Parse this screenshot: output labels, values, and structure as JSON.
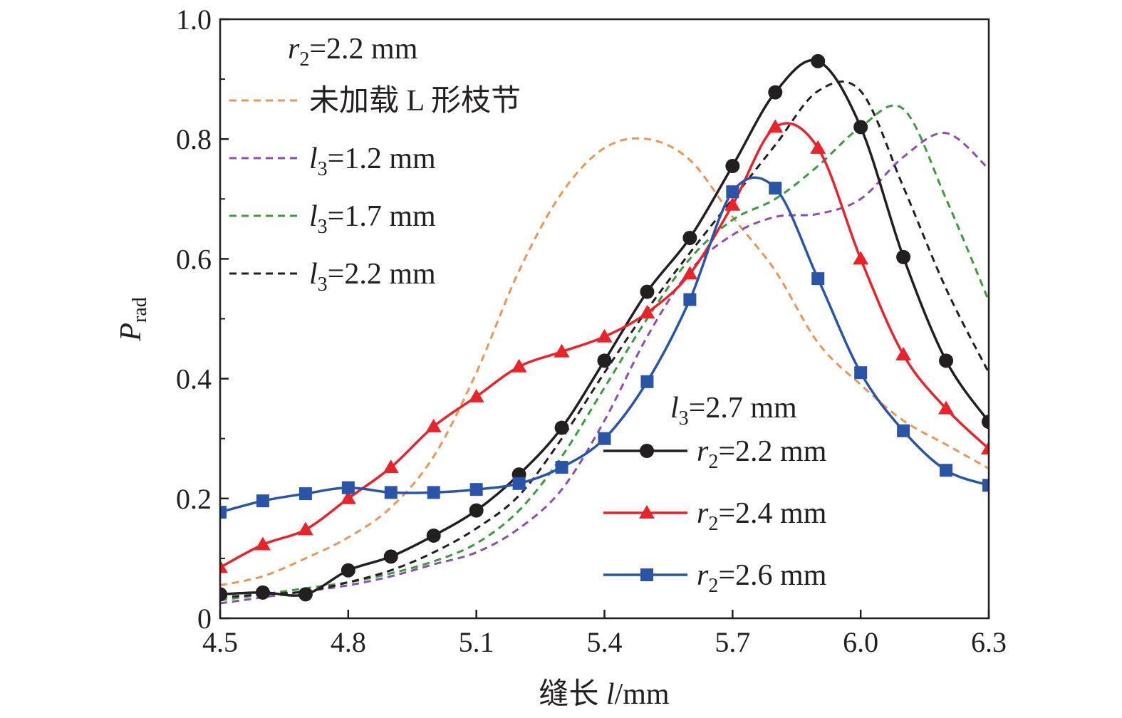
{
  "chart_data": {
    "type": "line",
    "xlabel": "缝长 l/mm",
    "ylabel": "Prad",
    "xlim": [
      4.5,
      6.3
    ],
    "ylim": [
      0,
      1.0
    ],
    "xticks": [
      "4.5",
      "4.8",
      "5.1",
      "5.4",
      "5.7",
      "6.0",
      "6.3"
    ],
    "yticks": [
      "0",
      "0.2",
      "0.4",
      "0.6",
      "0.8",
      "1.0"
    ],
    "grid": false,
    "legends": [
      {
        "heading": "r2=2.2 mm",
        "placement": "top-left",
        "entries": [
          {
            "label": "未加载 L 形枝节",
            "series": 0
          },
          {
            "label": "l3=1.2 mm",
            "series": 1
          },
          {
            "label": "l3=1.7 mm",
            "series": 2
          },
          {
            "label": "l3=2.2 mm",
            "series": 3
          }
        ]
      },
      {
        "heading": "l3=2.7 mm",
        "placement": "bottom-right",
        "entries": [
          {
            "label": "r2=2.2 mm",
            "series": 4
          },
          {
            "label": "r2=2.4 mm",
            "series": 5
          },
          {
            "label": "r2=2.6 mm",
            "series": 6
          }
        ]
      }
    ],
    "series": [
      {
        "name": "未加载 L 形枝节",
        "color": "#e8965a",
        "style": "dashed",
        "marker": "none",
        "x": [
          4.5,
          4.6,
          4.7,
          4.8,
          4.9,
          5.0,
          5.1,
          5.2,
          5.3,
          5.4,
          5.5,
          5.6,
          5.7,
          5.8,
          5.9,
          6.0,
          6.1,
          6.2,
          6.3
        ],
        "y": [
          0.055,
          0.07,
          0.1,
          0.135,
          0.185,
          0.27,
          0.41,
          0.58,
          0.71,
          0.785,
          0.8,
          0.765,
          0.67,
          0.58,
          0.46,
          0.39,
          0.33,
          0.29,
          0.25
        ]
      },
      {
        "name": "l3=1.2 mm",
        "color": "#8a4fb0",
        "style": "dashed",
        "marker": "none",
        "x": [
          4.5,
          4.6,
          4.7,
          4.8,
          4.9,
          5.0,
          5.1,
          5.2,
          5.3,
          5.4,
          5.5,
          5.6,
          5.7,
          5.8,
          5.9,
          6.0,
          6.1,
          6.2,
          6.3
        ],
        "y": [
          0.025,
          0.035,
          0.045,
          0.055,
          0.07,
          0.09,
          0.11,
          0.15,
          0.215,
          0.33,
          0.47,
          0.58,
          0.64,
          0.67,
          0.675,
          0.7,
          0.77,
          0.81,
          0.75
        ]
      },
      {
        "name": "l3=1.7 mm",
        "color": "#3f9a3f",
        "style": "dashed",
        "marker": "none",
        "x": [
          4.5,
          4.6,
          4.7,
          4.8,
          4.9,
          5.0,
          5.1,
          5.2,
          5.3,
          5.4,
          5.5,
          5.6,
          5.7,
          5.8,
          5.9,
          6.0,
          6.1,
          6.2,
          6.3
        ],
        "y": [
          0.03,
          0.04,
          0.05,
          0.06,
          0.075,
          0.095,
          0.125,
          0.18,
          0.27,
          0.385,
          0.5,
          0.6,
          0.665,
          0.7,
          0.755,
          0.82,
          0.85,
          0.7,
          0.53
        ]
      },
      {
        "name": "l3=2.2 mm",
        "color": "#231f20",
        "style": "dashed",
        "marker": "none",
        "x": [
          4.5,
          4.6,
          4.7,
          4.8,
          4.9,
          5.0,
          5.1,
          5.2,
          5.3,
          5.4,
          5.5,
          5.6,
          5.7,
          5.8,
          5.9,
          6.0,
          6.1,
          6.2,
          6.3
        ],
        "y": [
          0.035,
          0.04,
          0.045,
          0.06,
          0.08,
          0.11,
          0.15,
          0.205,
          0.3,
          0.41,
          0.515,
          0.61,
          0.7,
          0.79,
          0.88,
          0.88,
          0.72,
          0.55,
          0.41
        ]
      },
      {
        "name": "r2=2.2 mm",
        "color": "#231f20",
        "style": "solid",
        "marker": "circle",
        "x": [
          4.5,
          4.6,
          4.7,
          4.8,
          4.9,
          5.0,
          5.1,
          5.2,
          5.3,
          5.4,
          5.5,
          5.6,
          5.7,
          5.8,
          5.9,
          6.0,
          6.1,
          6.2,
          6.3
        ],
        "y": [
          0.04,
          0.043,
          0.04,
          0.08,
          0.103,
          0.138,
          0.18,
          0.24,
          0.318,
          0.43,
          0.545,
          0.635,
          0.755,
          0.878,
          0.93,
          0.82,
          0.603,
          0.43,
          0.328
        ]
      },
      {
        "name": "r2=2.4 mm",
        "color": "#e8232a",
        "style": "solid",
        "marker": "triangle",
        "x": [
          4.5,
          4.6,
          4.7,
          4.8,
          4.9,
          5.0,
          5.1,
          5.2,
          5.3,
          5.4,
          5.5,
          5.6,
          5.7,
          5.8,
          5.9,
          6.0,
          6.1,
          6.2,
          6.3
        ],
        "y": [
          0.085,
          0.123,
          0.148,
          0.2,
          0.252,
          0.32,
          0.37,
          0.42,
          0.445,
          0.47,
          0.51,
          0.575,
          0.69,
          0.82,
          0.785,
          0.6,
          0.44,
          0.35,
          0.283
        ]
      },
      {
        "name": "r2=2.6 mm",
        "color": "#2a54a8",
        "style": "solid",
        "marker": "square",
        "x": [
          4.5,
          4.6,
          4.7,
          4.8,
          4.9,
          5.0,
          5.1,
          5.2,
          5.3,
          5.4,
          5.5,
          5.6,
          5.7,
          5.8,
          5.9,
          6.0,
          6.1,
          6.2,
          6.3
        ],
        "y": [
          0.177,
          0.196,
          0.208,
          0.218,
          0.21,
          0.21,
          0.215,
          0.225,
          0.252,
          0.3,
          0.395,
          0.532,
          0.712,
          0.718,
          0.567,
          0.41,
          0.313,
          0.247,
          0.222
        ]
      }
    ]
  }
}
